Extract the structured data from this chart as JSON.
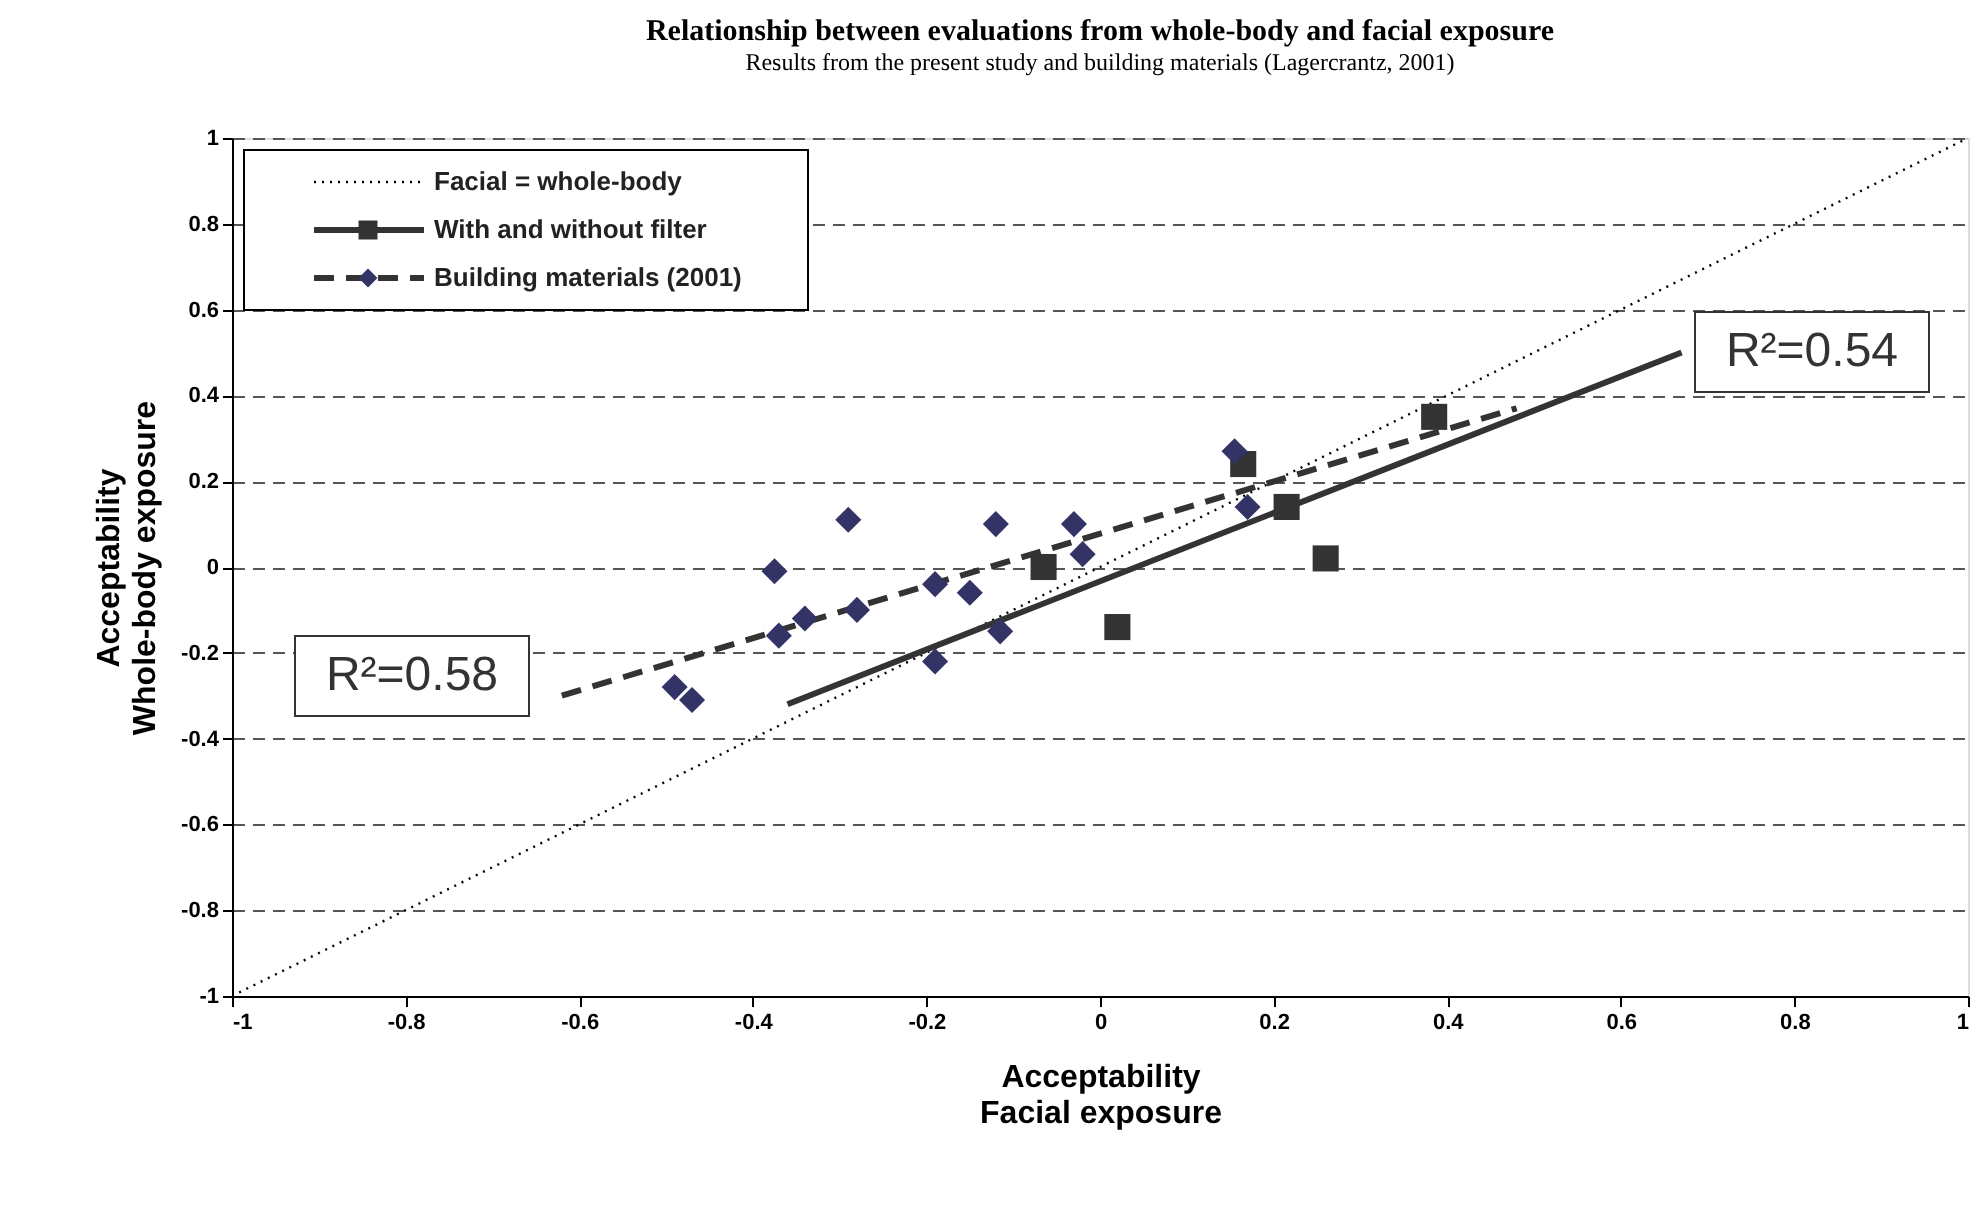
{
  "chart_data": {
    "type": "scatter",
    "title": "Relationship between evaluations from whole-body and facial exposure",
    "subtitle": "Results from the present study and building materials (Lagercrantz, 2001)",
    "xlabel": "Acceptability\nFacial exposure",
    "ylabel": "Acceptability\nWhole-body exposure",
    "xlim": [
      -1,
      1
    ],
    "xticks": [
      -1,
      -0.8,
      -0.6,
      -0.4,
      -0.2,
      0,
      0.2,
      0.4,
      0.6,
      0.8,
      1
    ],
    "ylim": [
      -1,
      1
    ],
    "yticks": [
      -1,
      -0.8,
      -0.6,
      -0.4,
      -0.2,
      0,
      0.2,
      0.4,
      0.6,
      0.8,
      1
    ],
    "grid": "y",
    "legend": "top left",
    "series": [
      {
        "name": "Facial = whole-body",
        "type": "line",
        "line_style": "dotted",
        "marker": "none",
        "color": "#000000",
        "x": [
          -1,
          1
        ],
        "values": [
          -1,
          1
        ]
      },
      {
        "name": "With and without filter",
        "marker": "square",
        "color": "#333333",
        "x": [
          -0.065,
          0.02,
          0.165,
          0.215,
          0.26,
          0.385
        ],
        "values": [
          0.0,
          -0.14,
          0.24,
          0.14,
          0.02,
          0.35
        ]
      },
      {
        "type": "line",
        "line_style": "solid",
        "marker": "none",
        "color": "#333333",
        "x": [
          -0.36,
          0.67
        ],
        "values": [
          -0.32,
          0.5
        ]
      },
      {
        "name": "Building materials (2001)",
        "marker": "diamond",
        "color": "#333366",
        "x": [
          -0.49,
          -0.47,
          -0.375,
          -0.37,
          -0.34,
          -0.29,
          -0.28,
          -0.19,
          -0.19,
          -0.15,
          -0.12,
          -0.115,
          -0.03,
          -0.02,
          0.155,
          0.17
        ],
        "values": [
          -0.28,
          -0.31,
          -0.01,
          -0.16,
          -0.12,
          0.11,
          -0.1,
          -0.22,
          -0.04,
          -0.06,
          0.1,
          -0.15,
          0.1,
          0.03,
          0.27,
          0.14
        ]
      },
      {
        "type": "line",
        "line_style": "dashed",
        "marker": "none",
        "color": "#333333",
        "x": [
          -0.62,
          0.48
        ],
        "values": [
          -0.3,
          0.37
        ]
      }
    ],
    "annotations": [
      "R²=0.58",
      "R²=0.54"
    ]
  }
}
